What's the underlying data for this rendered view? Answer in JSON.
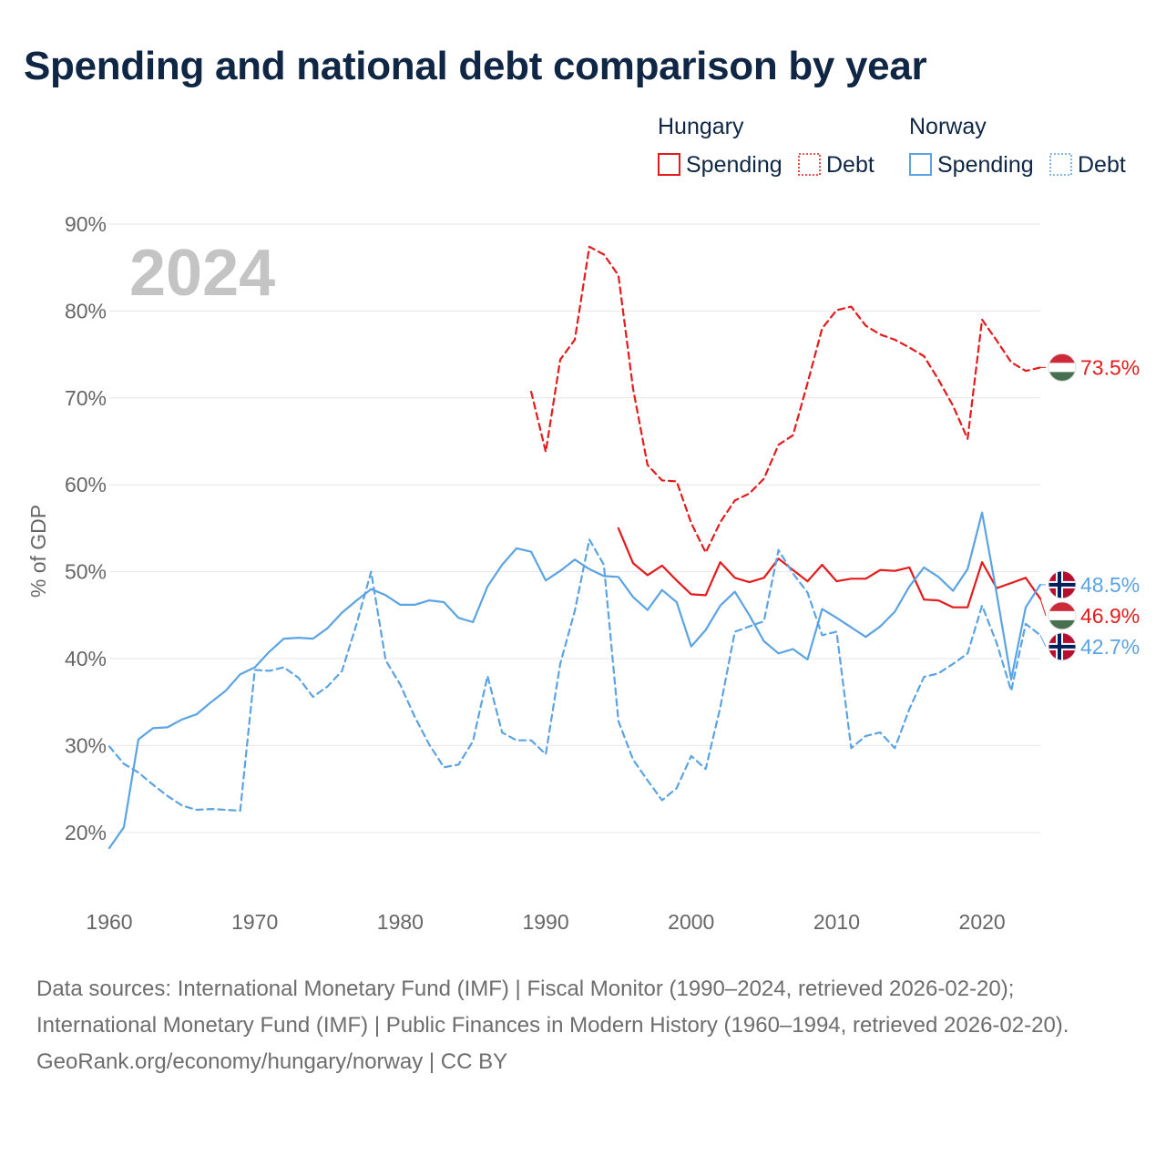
{
  "title": "Spending and national debt comparison by year",
  "footer": {
    "sources": "Data sources: International Monetary Fund (IMF) | Fiscal Monitor (1990–2024, retrieved 2026-02-20); International Monetary Fund (IMF) | Public Finances in Modern History (1960–1994, retrieved 2026-02-20).",
    "attribution": "GeoRank.org/economy/hungary/norway | CC BY"
  },
  "colors": {
    "hungary": "#e41a1c",
    "norway": "#5ba3e3",
    "title": "#0f2745",
    "grid": "#e6e6e6",
    "year_watermark": "#c4c4c4"
  },
  "chart_data": {
    "type": "line",
    "current_year": "2024",
    "ylabel": "% of GDP",
    "xlim": [
      1960,
      2024
    ],
    "ylim": [
      16,
      90
    ],
    "x_ticks": [
      {
        "value": 1960,
        "label": "1960"
      },
      {
        "value": 1970,
        "label": "1970"
      },
      {
        "value": 1980,
        "label": "1980"
      },
      {
        "value": 1990,
        "label": "1990"
      },
      {
        "value": 2000,
        "label": "2000"
      },
      {
        "value": 2010,
        "label": "2010"
      },
      {
        "value": 2020,
        "label": "2020"
      }
    ],
    "y_ticks": [
      {
        "value": 20,
        "label": "20%"
      },
      {
        "value": 30,
        "label": "30%"
      },
      {
        "value": 40,
        "label": "40%"
      },
      {
        "value": 50,
        "label": "50%"
      },
      {
        "value": 60,
        "label": "60%"
      },
      {
        "value": 70,
        "label": "70%"
      },
      {
        "value": 80,
        "label": "80%"
      },
      {
        "value": 90,
        "label": "90%"
      }
    ],
    "legend": {
      "groups": [
        {
          "country": "Hungary",
          "spending_label": "Spending",
          "debt_label": "Debt",
          "color": "#e41a1c"
        },
        {
          "country": "Norway",
          "spending_label": "Spending",
          "debt_label": "Debt",
          "color": "#5ba3e3"
        }
      ]
    },
    "series": [
      {
        "name": "Hungary Debt",
        "country": "Hungary",
        "metric": "Debt",
        "dashed": true,
        "color": "#e41a1c",
        "x": [
          1989,
          1990,
          1991,
          1992,
          1993,
          1994,
          1995,
          1996,
          1997,
          1998,
          1999,
          2000,
          2001,
          2002,
          2003,
          2004,
          2005,
          2006,
          2007,
          2008,
          2009,
          2010,
          2011,
          2012,
          2013,
          2014,
          2015,
          2016,
          2017,
          2018,
          2019,
          2020,
          2021,
          2022,
          2023,
          2024
        ],
        "values": [
          70.7,
          63.8,
          74.4,
          76.7,
          87.4,
          86.5,
          84.1,
          71.1,
          62.3,
          60.5,
          60.4,
          55.6,
          52.2,
          55.7,
          58.2,
          59.0,
          60.7,
          64.6,
          65.7,
          71.7,
          78.0,
          80.1,
          80.5,
          78.3,
          77.3,
          76.7,
          75.8,
          74.8,
          72.1,
          69.1,
          65.3,
          79.0,
          76.6,
          74.1,
          73.1,
          73.5
        ],
        "end_label": "73.5%"
      },
      {
        "name": "Hungary Spending",
        "country": "Hungary",
        "metric": "Spending",
        "dashed": false,
        "color": "#e41a1c",
        "x": [
          1995,
          1996,
          1997,
          1998,
          1999,
          2000,
          2001,
          2002,
          2003,
          2004,
          2005,
          2006,
          2007,
          2008,
          2009,
          2010,
          2011,
          2012,
          2013,
          2014,
          2015,
          2016,
          2017,
          2018,
          2019,
          2020,
          2021,
          2022,
          2023,
          2024
        ],
        "values": [
          55.0,
          51.0,
          49.6,
          50.7,
          49.0,
          47.4,
          47.3,
          51.1,
          49.3,
          48.8,
          49.3,
          51.5,
          50.2,
          48.9,
          50.8,
          48.9,
          49.2,
          49.2,
          50.2,
          50.1,
          50.5,
          46.8,
          46.7,
          45.9,
          45.9,
          51.1,
          48.1,
          48.7,
          49.3,
          46.9
        ],
        "end_label": "46.9%"
      },
      {
        "name": "Norway Spending",
        "country": "Norway",
        "metric": "Spending",
        "dashed": false,
        "color": "#5ba3e3",
        "x": [
          1960,
          1961,
          1962,
          1963,
          1964,
          1965,
          1966,
          1967,
          1968,
          1969,
          1970,
          1971,
          1972,
          1973,
          1974,
          1975,
          1976,
          1977,
          1978,
          1979,
          1980,
          1981,
          1982,
          1983,
          1984,
          1985,
          1986,
          1987,
          1988,
          1989,
          1990,
          1991,
          1992,
          1993,
          1994,
          1995,
          1996,
          1997,
          1998,
          1999,
          2000,
          2001,
          2002,
          2003,
          2004,
          2005,
          2006,
          2007,
          2008,
          2009,
          2010,
          2011,
          2012,
          2013,
          2014,
          2015,
          2016,
          2017,
          2018,
          2019,
          2020,
          2021,
          2022,
          2023,
          2024
        ],
        "values": [
          18.2,
          20.6,
          30.7,
          32.0,
          32.1,
          33.0,
          33.6,
          35.0,
          36.3,
          38.2,
          39.0,
          40.8,
          42.3,
          42.4,
          42.3,
          43.5,
          45.3,
          46.7,
          48.0,
          47.3,
          46.2,
          46.2,
          46.7,
          46.5,
          44.7,
          44.2,
          48.3,
          50.8,
          52.7,
          52.3,
          49.0,
          50.1,
          51.4,
          50.3,
          49.5,
          49.4,
          47.1,
          45.6,
          47.9,
          46.5,
          41.4,
          43.3,
          46.1,
          47.7,
          45.0,
          42.0,
          40.6,
          41.1,
          39.9,
          45.7,
          44.7,
          43.6,
          42.5,
          43.7,
          45.4,
          48.3,
          50.5,
          49.4,
          47.8,
          50.3,
          56.8,
          47.5,
          37.6,
          45.9,
          48.5
        ],
        "end_label": "48.5%"
      },
      {
        "name": "Norway Debt",
        "country": "Norway",
        "metric": "Debt",
        "dashed": true,
        "color": "#5ba3e3",
        "x": [
          1960,
          1961,
          1962,
          1963,
          1964,
          1965,
          1966,
          1967,
          1968,
          1969,
          1970,
          1971,
          1972,
          1973,
          1974,
          1975,
          1976,
          1977,
          1978,
          1979,
          1980,
          1981,
          1982,
          1983,
          1984,
          1985,
          1986,
          1987,
          1988,
          1989,
          1990,
          1991,
          1992,
          1993,
          1994,
          1995,
          1996,
          1997,
          1998,
          1999,
          2000,
          2001,
          2002,
          2003,
          2004,
          2005,
          2006,
          2007,
          2008,
          2009,
          2010,
          2011,
          2012,
          2013,
          2014,
          2015,
          2016,
          2017,
          2018,
          2019,
          2020,
          2021,
          2022,
          2023,
          2024
        ],
        "values": [
          29.9,
          27.9,
          26.9,
          25.5,
          24.2,
          23.1,
          22.6,
          22.7,
          22.6,
          22.5,
          38.7,
          38.6,
          39.0,
          37.8,
          35.6,
          36.8,
          38.6,
          44.0,
          50.0,
          39.8,
          37.0,
          33.3,
          30.1,
          27.5,
          27.8,
          30.5,
          38.0,
          31.5,
          30.6,
          30.6,
          29.0,
          39.4,
          45.5,
          53.7,
          50.8,
          32.8,
          28.4,
          26.0,
          23.7,
          25.1,
          28.8,
          27.3,
          34.4,
          43.1,
          43.7,
          44.3,
          52.5,
          49.8,
          47.6,
          42.7,
          43.1,
          29.7,
          31.1,
          31.5,
          29.7,
          34.2,
          37.9,
          38.3,
          39.4,
          40.6,
          46.1,
          41.8,
          36.3,
          44.0,
          42.7
        ],
        "end_label": "42.7%"
      }
    ]
  }
}
